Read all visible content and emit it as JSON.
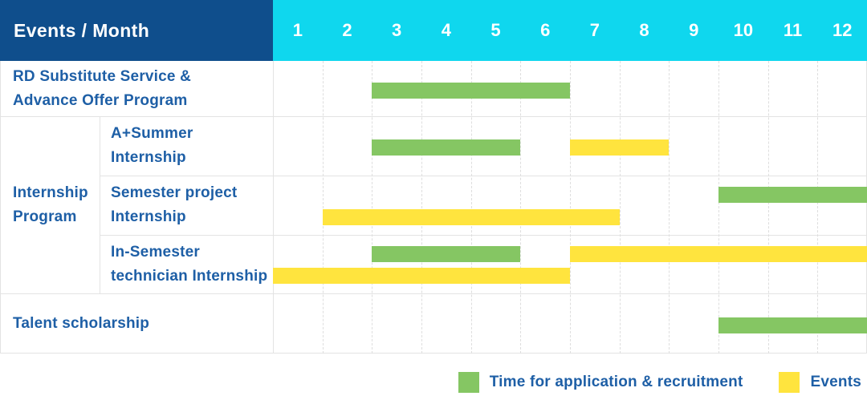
{
  "header": {
    "label": "Events / Month",
    "months": [
      "1",
      "2",
      "3",
      "4",
      "5",
      "6",
      "7",
      "8",
      "9",
      "10",
      "11",
      "12"
    ]
  },
  "colors": {
    "background": "#ffffff",
    "header_bg": "#0f4e8c",
    "months_bg": "#0fd7ee",
    "header_text": "#ffffff",
    "label_text": "#1e5fa6",
    "grid": "#e3e3e3",
    "grid_dash": "#dedede",
    "green": "#85c663",
    "yellow": "#ffe43e"
  },
  "legend": [
    {
      "key": "green",
      "label": "Time for application & recruitment"
    },
    {
      "key": "yellow",
      "label": "Events"
    }
  ],
  "chart_data": {
    "type": "bar",
    "variant": "gantt-timeline",
    "title": "Events / Month",
    "x_axis": {
      "unit": "month",
      "ticks": [
        "1",
        "2",
        "3",
        "4",
        "5",
        "6",
        "7",
        "8",
        "9",
        "10",
        "11",
        "12"
      ],
      "range": [
        1,
        12
      ]
    },
    "legend_position": "bottom-right",
    "series_legend": [
      {
        "name": "Time for application & recruitment",
        "color_key": "green",
        "color": "#85c663"
      },
      {
        "name": "Events",
        "color_key": "yellow",
        "color": "#ffe43e"
      }
    ],
    "rows": [
      {
        "group": "",
        "label": "RD Substitute Service & Advance Offer Program",
        "label_lines": [
          "RD Substitute Service &",
          "Advance Offer Program"
        ],
        "lanes": 1,
        "bars": [
          {
            "series": "Time for application & recruitment",
            "color_key": "green",
            "start_month": 3,
            "end_month": 6,
            "lane": 0
          }
        ]
      },
      {
        "group": "Internship Program",
        "group_lines": [
          "Internship",
          "Program"
        ],
        "label": "A+Summer Internship",
        "label_lines": [
          "A+Summer",
          "Internship"
        ],
        "lanes": 1,
        "bars": [
          {
            "series": "Time for application & recruitment",
            "color_key": "green",
            "start_month": 3,
            "end_month": 5,
            "lane": 0
          },
          {
            "series": "Events",
            "color_key": "yellow",
            "start_month": 7,
            "end_month": 8,
            "lane": 0
          }
        ]
      },
      {
        "group": "Internship Program",
        "label": "Semester project Internship",
        "label_lines": [
          "Semester project",
          "Internship"
        ],
        "lanes": 2,
        "bars": [
          {
            "series": "Time for application & recruitment",
            "color_key": "green",
            "start_month": 10,
            "end_month": 12,
            "lane": 0
          },
          {
            "series": "Events",
            "color_key": "yellow",
            "start_month": 2,
            "end_month": 7,
            "lane": 1
          }
        ]
      },
      {
        "group": "Internship Program",
        "label": "In-Semester technician Internship",
        "label_lines": [
          "In-Semester",
          "technician Internship"
        ],
        "lanes": 2,
        "bars": [
          {
            "series": "Time for application & recruitment",
            "color_key": "green",
            "start_month": 3,
            "end_month": 5,
            "lane": 0
          },
          {
            "series": "Events",
            "color_key": "yellow",
            "start_month": 7,
            "end_month": 12,
            "lane": 0
          },
          {
            "series": "Events",
            "color_key": "yellow",
            "start_month": 1,
            "end_month": 6,
            "lane": 1
          }
        ]
      },
      {
        "group": "",
        "label": "Talent scholarship",
        "label_lines": [
          "Talent scholarship"
        ],
        "lanes": 1,
        "bars": [
          {
            "series": "Time for application & recruitment",
            "color_key": "green",
            "start_month": 10,
            "end_month": 12,
            "lane": 0
          }
        ]
      }
    ]
  }
}
